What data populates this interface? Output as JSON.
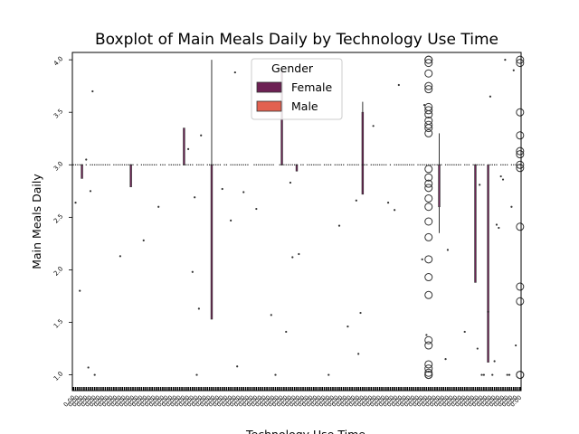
{
  "chart_data": {
    "type": "box",
    "title": "Boxplot of Main Meals Daily by Technology Use Time",
    "xlabel": "Technology Use Time",
    "ylabel": "Main Meals Daily",
    "ylim": [
      0.85,
      4.07
    ],
    "yticks": [
      1.0,
      1.5,
      2.0,
      2.5,
      3.0,
      3.5,
      4.0
    ],
    "ytick_labels": [
      "1.0",
      "1.5",
      "2.0",
      "2.5",
      "3.0",
      "3.5",
      "4.0"
    ],
    "x_tick_labels_note_shown": "0.00",
    "x_count": 210,
    "grid": false,
    "legend": {
      "title": "Gender",
      "placement": "top-center",
      "entries": [
        {
          "name": "Female",
          "color": "#6d2154"
        },
        {
          "name": "Male",
          "color": "#e26150"
        }
      ]
    },
    "female_boxes": [
      {
        "x": 4,
        "q1": 2.87,
        "median": 3.0,
        "q3": 3.0,
        "whisker_low": 2.87,
        "whisker_high": 3.0
      },
      {
        "x": 27,
        "q1": 2.79,
        "median": 3.0,
        "q3": 3.0,
        "whisker_low": 2.79,
        "whisker_high": 3.0
      },
      {
        "x": 52,
        "q1": 3.0,
        "median": 3.0,
        "q3": 3.35,
        "whisker_low": 3.0,
        "whisker_high": 3.35
      },
      {
        "x": 65,
        "q1": 1.53,
        "median": 3.0,
        "q3": 3.0,
        "whisker_low": 1.53,
        "whisker_high": 4.0
      },
      {
        "x": 98,
        "q1": 3.0,
        "median": 3.0,
        "q3": 3.9,
        "whisker_low": 3.0,
        "whisker_high": 3.9
      },
      {
        "x": 105,
        "q1": 2.94,
        "median": 3.0,
        "q3": 3.0,
        "whisker_low": 2.94,
        "whisker_high": 3.0
      },
      {
        "x": 136,
        "q1": 2.72,
        "median": 3.0,
        "q3": 3.5,
        "whisker_low": 2.72,
        "whisker_high": 3.6
      },
      {
        "x": 172,
        "q1": 2.6,
        "median": 3.0,
        "q3": 3.0,
        "whisker_low": 2.35,
        "whisker_high": 3.3
      },
      {
        "x": 189,
        "q1": 1.88,
        "median": 3.0,
        "q3": 3.0,
        "whisker_low": 1.88,
        "whisker_high": 3.0
      },
      {
        "x": 195,
        "q1": 1.12,
        "median": 1.6,
        "q3": 3.0,
        "whisker_low": 1.12,
        "whisker_high": 3.0
      }
    ],
    "outlier_columns": [
      {
        "x": 167,
        "values": [
          1.0,
          1.0,
          1.02,
          1.06,
          1.1,
          1.28,
          1.33,
          1.76,
          1.93,
          2.1,
          2.31,
          2.46,
          2.6,
          2.68,
          2.78,
          2.82,
          2.88,
          2.96,
          3.3,
          3.35,
          3.38,
          3.42,
          3.48,
          3.52,
          3.55,
          3.72,
          3.75,
          3.87,
          3.97,
          4.0,
          4.0
        ]
      },
      {
        "x": 210,
        "values": [
          1.0,
          1.0,
          1.7,
          1.84,
          2.41,
          2.97,
          3.0,
          3.1,
          3.13,
          3.28,
          3.5,
          3.97,
          4.0
        ]
      }
    ],
    "scatter_points": [
      {
        "x": 1,
        "y": 2.64
      },
      {
        "x": 3,
        "y": 1.8
      },
      {
        "x": 6,
        "y": 3.05
      },
      {
        "x": 7,
        "y": 1.07
      },
      {
        "x": 8,
        "y": 2.75
      },
      {
        "x": 9,
        "y": 3.7
      },
      {
        "x": 10,
        "y": 1.0
      },
      {
        "x": 22,
        "y": 2.13
      },
      {
        "x": 33,
        "y": 2.28
      },
      {
        "x": 40,
        "y": 2.6
      },
      {
        "x": 54,
        "y": 3.15
      },
      {
        "x": 56,
        "y": 1.98
      },
      {
        "x": 57,
        "y": 2.69
      },
      {
        "x": 58,
        "y": 1.0
      },
      {
        "x": 59,
        "y": 1.63
      },
      {
        "x": 60,
        "y": 3.28
      },
      {
        "x": 70,
        "y": 2.77
      },
      {
        "x": 74,
        "y": 2.47
      },
      {
        "x": 76,
        "y": 3.88
      },
      {
        "x": 77,
        "y": 1.08
      },
      {
        "x": 80,
        "y": 2.74
      },
      {
        "x": 86,
        "y": 2.58
      },
      {
        "x": 93,
        "y": 1.57
      },
      {
        "x": 95,
        "y": 1.0
      },
      {
        "x": 100,
        "y": 1.41
      },
      {
        "x": 102,
        "y": 2.83
      },
      {
        "x": 103,
        "y": 2.12
      },
      {
        "x": 106,
        "y": 2.15
      },
      {
        "x": 120,
        "y": 1.0
      },
      {
        "x": 125,
        "y": 2.42
      },
      {
        "x": 129,
        "y": 1.46
      },
      {
        "x": 133,
        "y": 2.66
      },
      {
        "x": 134,
        "y": 1.2
      },
      {
        "x": 135,
        "y": 1.59
      },
      {
        "x": 141,
        "y": 3.37
      },
      {
        "x": 148,
        "y": 2.64
      },
      {
        "x": 151,
        "y": 2.57
      },
      {
        "x": 153,
        "y": 3.76
      },
      {
        "x": 164,
        "y": 2.1
      },
      {
        "x": 165,
        "y": 3.57
      },
      {
        "x": 166,
        "y": 1.38
      },
      {
        "x": 175,
        "y": 1.15
      },
      {
        "x": 176,
        "y": 2.19
      },
      {
        "x": 184,
        "y": 1.41
      },
      {
        "x": 190,
        "y": 1.25
      },
      {
        "x": 191,
        "y": 2.81
      },
      {
        "x": 192,
        "y": 1.0
      },
      {
        "x": 193,
        "y": 1.0
      },
      {
        "x": 196,
        "y": 3.65
      },
      {
        "x": 197,
        "y": 1.0
      },
      {
        "x": 198,
        "y": 1.13
      },
      {
        "x": 199,
        "y": 2.43
      },
      {
        "x": 200,
        "y": 2.4
      },
      {
        "x": 201,
        "y": 2.89
      },
      {
        "x": 202,
        "y": 2.86
      },
      {
        "x": 203,
        "y": 4.0
      },
      {
        "x": 204,
        "y": 1.0
      },
      {
        "x": 205,
        "y": 1.0
      },
      {
        "x": 206,
        "y": 2.6
      },
      {
        "x": 207,
        "y": 3.9
      },
      {
        "x": 208,
        "y": 1.28
      }
    ]
  }
}
